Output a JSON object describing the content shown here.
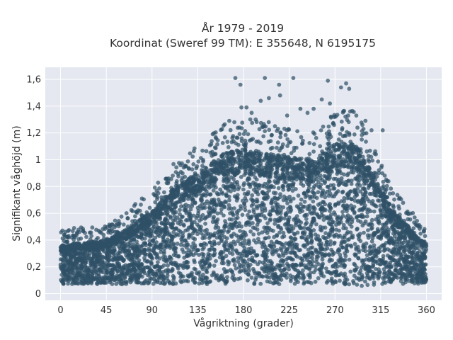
{
  "chart_data": {
    "type": "scatter",
    "title_lines": [
      "År 1979 - 2019",
      "Koordinat (Sweref 99 TM): E 355648, N 6195175"
    ],
    "xlabel": "Vågriktning (grader)",
    "ylabel": "Signifikant våghöjd (m)",
    "xlim": [
      -15,
      375
    ],
    "ylim": [
      -0.05,
      1.69
    ],
    "xticks": [
      0,
      45,
      90,
      135,
      180,
      225,
      270,
      315,
      360
    ],
    "yticks": [
      0,
      0.2,
      0.4,
      0.6,
      0.8,
      1,
      1.2,
      1.4,
      1.6
    ],
    "ytick_labels": [
      "0",
      "0,2",
      "0,4",
      "0,6",
      "0,8",
      "1",
      "1,2",
      "1,4",
      "1,6"
    ],
    "grid": true,
    "marker_color": "#2f5066",
    "background_color": "#e5e8f0",
    "envelope": {
      "x": [
        0,
        20,
        45,
        65,
        90,
        110,
        135,
        160,
        180,
        200,
        225,
        250,
        270,
        290,
        300,
        315,
        330,
        345,
        360
      ],
      "y_min": [
        0.07,
        0.07,
        0.07,
        0.07,
        0.07,
        0.07,
        0.07,
        0.07,
        0.07,
        0.07,
        0.07,
        0.07,
        0.07,
        0.05,
        0.05,
        0.07,
        0.07,
        0.07,
        0.07
      ],
      "y_max": [
        0.36,
        0.38,
        0.4,
        0.48,
        0.62,
        0.78,
        0.9,
        1.05,
        1.08,
        1.05,
        1.02,
        1.0,
        1.12,
        1.12,
        1.0,
        0.78,
        0.6,
        0.48,
        0.38
      ]
    },
    "outliers": [
      {
        "x": 172,
        "y": 1.61
      },
      {
        "x": 201,
        "y": 1.61
      },
      {
        "x": 229,
        "y": 1.61
      },
      {
        "x": 263,
        "y": 1.59
      },
      {
        "x": 177,
        "y": 1.56
      },
      {
        "x": 281,
        "y": 1.57
      },
      {
        "x": 276,
        "y": 1.54
      },
      {
        "x": 215,
        "y": 1.56
      },
      {
        "x": 284,
        "y": 1.53
      },
      {
        "x": 257,
        "y": 1.45
      },
      {
        "x": 183,
        "y": 1.39
      },
      {
        "x": 178,
        "y": 1.39
      },
      {
        "x": 205,
        "y": 1.46
      },
      {
        "x": 197,
        "y": 1.44
      },
      {
        "x": 216,
        "y": 1.48
      },
      {
        "x": 236,
        "y": 1.38
      },
      {
        "x": 249,
        "y": 1.38
      },
      {
        "x": 265,
        "y": 1.42
      },
      {
        "x": 223,
        "y": 1.33
      },
      {
        "x": 188,
        "y": 1.35
      },
      {
        "x": 166,
        "y": 1.29
      },
      {
        "x": 285,
        "y": 1.36
      },
      {
        "x": 291,
        "y": 1.33
      },
      {
        "x": 300,
        "y": 1.29
      },
      {
        "x": 176,
        "y": 1.24
      },
      {
        "x": 192,
        "y": 1.3
      },
      {
        "x": 211,
        "y": 1.25
      },
      {
        "x": 243,
        "y": 1.35
      },
      {
        "x": 268,
        "y": 1.27
      },
      {
        "x": 297,
        "y": 1.26
      },
      {
        "x": 306,
        "y": 1.22
      },
      {
        "x": 317,
        "y": 1.22
      }
    ]
  }
}
